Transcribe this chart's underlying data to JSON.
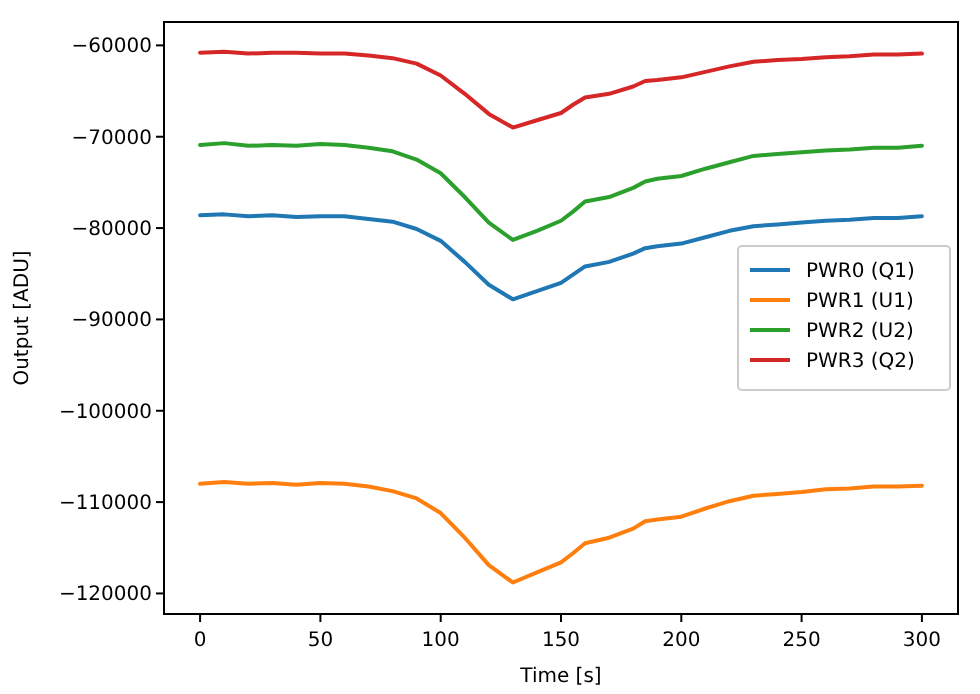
{
  "chart_data": {
    "type": "line",
    "xlabel": "Time [s]",
    "ylabel": "Output [ADU]",
    "x": [
      0,
      10,
      20,
      30,
      40,
      50,
      60,
      70,
      80,
      90,
      100,
      110,
      120,
      130,
      140,
      150,
      155,
      160,
      170,
      180,
      185,
      190,
      200,
      210,
      220,
      230,
      240,
      250,
      260,
      270,
      280,
      290,
      300
    ],
    "xlim": [
      -15,
      315
    ],
    "ylim": [
      -122250,
      -57440
    ],
    "xticks": [
      0,
      50,
      100,
      150,
      200,
      250,
      300
    ],
    "yticks": [
      -120000,
      -110000,
      -100000,
      -90000,
      -80000,
      -70000,
      -60000
    ],
    "legend": "right",
    "grid": false,
    "line_style": "solid",
    "marker": "none",
    "series": [
      {
        "name": "PWR0 (Q1)",
        "color": "#1f77b4",
        "values": [
          -78600,
          -78500,
          -78700,
          -78600,
          -78800,
          -78700,
          -78700,
          -79000,
          -79300,
          -80100,
          -81400,
          -83700,
          -86200,
          -87800,
          -86900,
          -86000,
          -85100,
          -84200,
          -83700,
          -82800,
          -82200,
          -82000,
          -81700,
          -81000,
          -80300,
          -79800,
          -79600,
          -79400,
          -79200,
          -79100,
          -78900,
          -78900,
          -78700
        ]
      },
      {
        "name": "PWR1 (U1)",
        "color": "#ff7f0e",
        "values": [
          -108000,
          -107800,
          -108000,
          -107900,
          -108100,
          -107900,
          -108000,
          -108300,
          -108800,
          -109600,
          -111200,
          -113900,
          -116900,
          -118800,
          -117700,
          -116600,
          -115600,
          -114500,
          -113900,
          -112900,
          -112100,
          -111900,
          -111600,
          -110700,
          -109900,
          -109300,
          -109100,
          -108900,
          -108600,
          -108500,
          -108300,
          -108300,
          -108200
        ]
      },
      {
        "name": "PWR2 (U2)",
        "color": "#2ca02c",
        "values": [
          -70900,
          -70700,
          -71000,
          -70900,
          -71000,
          -70800,
          -70900,
          -71200,
          -71600,
          -72500,
          -74000,
          -76600,
          -79400,
          -81300,
          -80300,
          -79200,
          -78200,
          -77100,
          -76600,
          -75600,
          -74900,
          -74600,
          -74300,
          -73500,
          -72800,
          -72100,
          -71900,
          -71700,
          -71500,
          -71400,
          -71200,
          -71200,
          -71000
        ]
      },
      {
        "name": "PWR3 (Q2)",
        "color": "#d62728",
        "values": [
          -60800,
          -60700,
          -60900,
          -60800,
          -60800,
          -60900,
          -60900,
          -61100,
          -61400,
          -62000,
          -63300,
          -65300,
          -67500,
          -69000,
          -68200,
          -67400,
          -66500,
          -65700,
          -65300,
          -64500,
          -63900,
          -63800,
          -63500,
          -62900,
          -62300,
          -61800,
          -61600,
          -61500,
          -61300,
          -61200,
          -61000,
          -61000,
          -60900
        ]
      }
    ]
  }
}
